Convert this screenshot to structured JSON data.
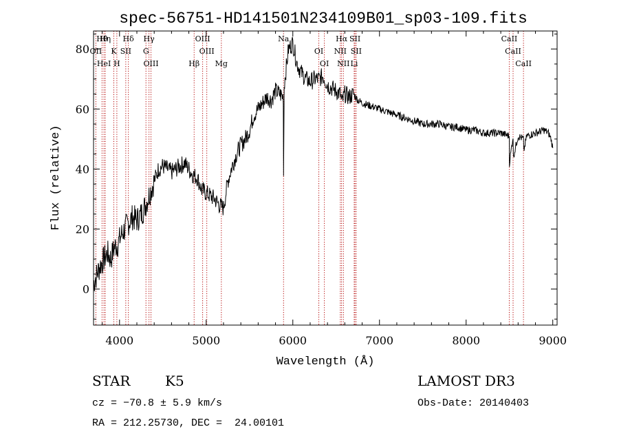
{
  "chart_data": {
    "type": "line",
    "title": "spec-56751-HD141501N234109B01_sp03-109.fits",
    "xlabel": "Wavelength (Å)",
    "ylabel": "Flux (relative)",
    "xlim": [
      3700,
      9050
    ],
    "ylim": [
      -12,
      86
    ],
    "xticks": [
      4000,
      5000,
      6000,
      7000,
      8000,
      9000
    ],
    "yticks": [
      0,
      20,
      40,
      60,
      80
    ],
    "xtick_labels": [
      "4000",
      "5000",
      "6000",
      "7000",
      "8000",
      "9000"
    ],
    "ytick_labels": [
      "0",
      "20",
      "40",
      "60",
      "80"
    ],
    "grid": false,
    "series": [
      {
        "name": "spectrum",
        "x": [
          3700,
          3740,
          3780,
          3820,
          3860,
          3900,
          3940,
          3980,
          4020,
          4060,
          4100,
          4150,
          4200,
          4250,
          4300,
          4350,
          4400,
          4450,
          4500,
          4550,
          4600,
          4650,
          4700,
          4750,
          4800,
          4850,
          4900,
          4950,
          5000,
          5050,
          5100,
          5150,
          5200,
          5250,
          5300,
          5350,
          5400,
          5450,
          5500,
          5550,
          5600,
          5650,
          5700,
          5750,
          5800,
          5850,
          5890,
          5893,
          5900,
          5950,
          6000,
          6050,
          6100,
          6150,
          6200,
          6250,
          6300,
          6350,
          6400,
          6450,
          6500,
          6550,
          6563,
          6600,
          6650,
          6700,
          6750,
          6800,
          6900,
          7000,
          7100,
          7200,
          7300,
          7400,
          7500,
          7600,
          7700,
          7800,
          7900,
          8000,
          8100,
          8200,
          8300,
          8400,
          8498,
          8500,
          8542,
          8545,
          8600,
          8662,
          8665,
          8700,
          8800,
          8900,
          8950,
          8980,
          9000
        ],
        "y": [
          2,
          5,
          8,
          10,
          12,
          10,
          14,
          15,
          18,
          20,
          22,
          24,
          23,
          25,
          28,
          32,
          36,
          40,
          41,
          40,
          39,
          40,
          41,
          42,
          40,
          38,
          37,
          33,
          32,
          31,
          30,
          28,
          27,
          36,
          41,
          45,
          48,
          50,
          53,
          58,
          60,
          62,
          64,
          63,
          66,
          65,
          64,
          38,
          68,
          80,
          82,
          75,
          72,
          70,
          69,
          70,
          70,
          71,
          68,
          67,
          66,
          65,
          62,
          65,
          64,
          65,
          63,
          62,
          61,
          60,
          59,
          58,
          57,
          56,
          55,
          55,
          55,
          54,
          54,
          53,
          53,
          52,
          52,
          52,
          51,
          42,
          51,
          44,
          51,
          50,
          46,
          51,
          52,
          53,
          52,
          50,
          47
        ]
      }
    ],
    "lines": [
      {
        "label": "Hθ",
        "x": 3798
      },
      {
        "label": "OII",
        "x": 3727
      },
      {
        "label": "HeI",
        "x": 3820
      },
      {
        "label": "Hη",
        "x": 3835
      },
      {
        "label": "K",
        "x": 3934
      },
      {
        "label": "H",
        "x": 3969
      },
      {
        "label": "Hδ",
        "x": 4102
      },
      {
        "label": "SII",
        "x": 4072
      },
      {
        "label": "OIII",
        "x": 4363
      },
      {
        "label": "Hγ",
        "x": 4340
      },
      {
        "label": "G",
        "x": 4305
      },
      {
        "label": "Hβ",
        "x": 4861
      },
      {
        "label": "OIII",
        "x": 4959
      },
      {
        "label": "OIII",
        "x": 5007
      },
      {
        "label": "Mg",
        "x": 5175
      },
      {
        "label": "Na",
        "x": 5893
      },
      {
        "label": "OI",
        "x": 6300
      },
      {
        "label": "OI",
        "x": 6364
      },
      {
        "label": "Hα",
        "x": 6563
      },
      {
        "label": "NII",
        "x": 6548
      },
      {
        "label": "NII",
        "x": 6584
      },
      {
        "label": "SII",
        "x": 6717
      },
      {
        "label": "SII",
        "x": 6731
      },
      {
        "label": "Li",
        "x": 6708
      },
      {
        "label": "CaII",
        "x": 8498
      },
      {
        "label": "CaII",
        "x": 8542
      },
      {
        "label": "CaII",
        "x": 8662
      }
    ]
  },
  "info": {
    "object_type": "STAR",
    "subclass": "K5",
    "survey": "LAMOST DR3",
    "velocity": "cz = −70.8 ± 5.9 km/s",
    "obs_date": "Obs-Date: 20140403",
    "coords": "RA = 212.25730, DEC =  24.00101"
  },
  "colors": {
    "line_marker": "#b30000",
    "spectrum": "#000000"
  }
}
